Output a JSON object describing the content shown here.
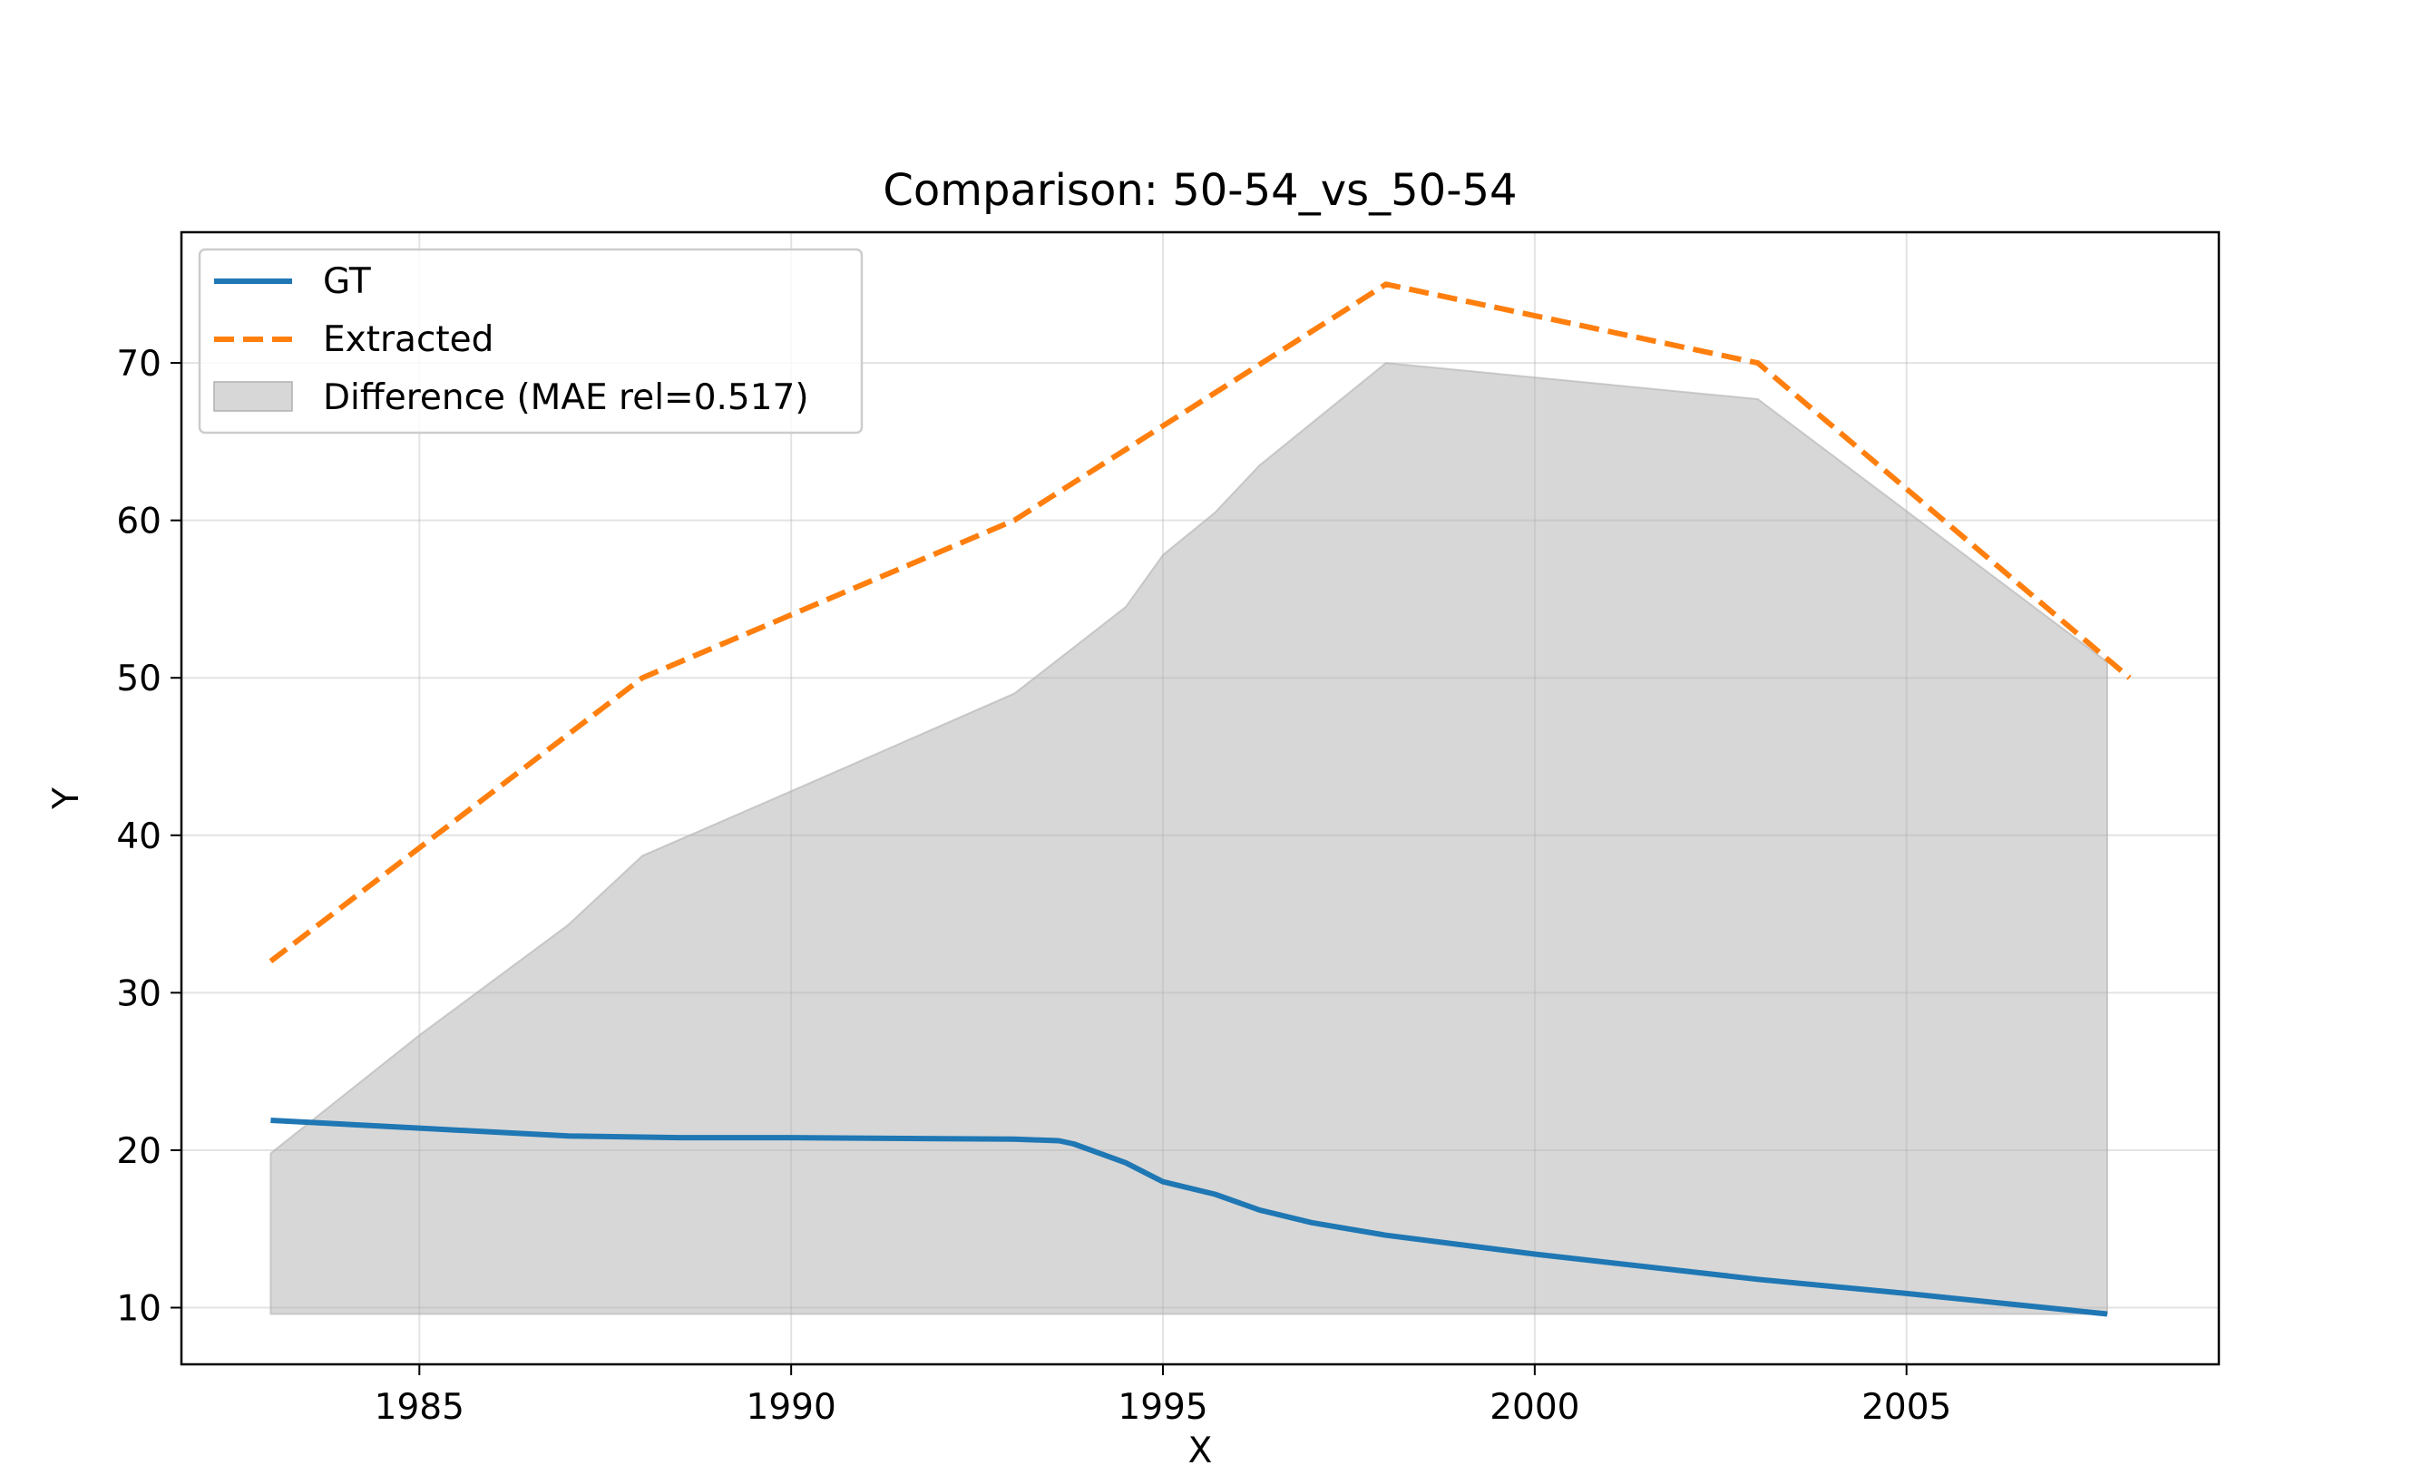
{
  "chart_data": {
    "type": "line",
    "title": "Comparison: 50-54_vs_50-54",
    "xlabel": "X",
    "ylabel": "Y",
    "xlim": [
      1981.8,
      2009.2
    ],
    "ylim": [
      6.4,
      78.3
    ],
    "xticks": [
      1985,
      1990,
      1995,
      2000,
      2005
    ],
    "yticks": [
      10,
      20,
      30,
      40,
      50,
      60,
      70
    ],
    "grid": true,
    "legend_position": "top-left",
    "series": [
      {
        "name": "GT",
        "color": "#1f77b4",
        "style": "solid",
        "x": [
          1983.0,
          1985.0,
          1987.0,
          1988.5,
          1990.0,
          1993.0,
          1993.6,
          1993.8,
          1994.5,
          1995.0,
          1995.7,
          1996.3,
          1997.0,
          1998.0,
          2000.0,
          2003.0,
          2005.0,
          2007.7
        ],
        "y": [
          21.9,
          21.4,
          20.9,
          20.8,
          20.8,
          20.7,
          20.6,
          20.4,
          19.2,
          18.0,
          17.2,
          16.2,
          15.4,
          14.6,
          13.4,
          11.8,
          10.9,
          9.6
        ]
      },
      {
        "name": "Extracted",
        "color": "#ff7f0e",
        "style": "dashed",
        "x": [
          1983.0,
          1988.0,
          1993.0,
          1998.0,
          2003.0,
          2008.0
        ],
        "y": [
          32.0,
          50.0,
          60.0,
          75.0,
          70.0,
          50.0
        ]
      }
    ],
    "difference_band": {
      "name": "Difference (MAE rel=0.517)",
      "color": "#b0b0b0",
      "x": [
        1983.0,
        1985.0,
        1987.0,
        1988.0,
        1990.0,
        1993.0,
        1993.6,
        1994.5,
        1995.0,
        1995.7,
        1996.3,
        1998.0,
        2003.0,
        2007.7
      ],
      "upper": [
        19.8,
        27.3,
        34.3,
        38.7,
        42.8,
        49.0,
        51.2,
        54.5,
        57.8,
        60.5,
        63.5,
        70.0,
        67.7,
        51.0
      ],
      "lower_constant": 9.6
    }
  }
}
